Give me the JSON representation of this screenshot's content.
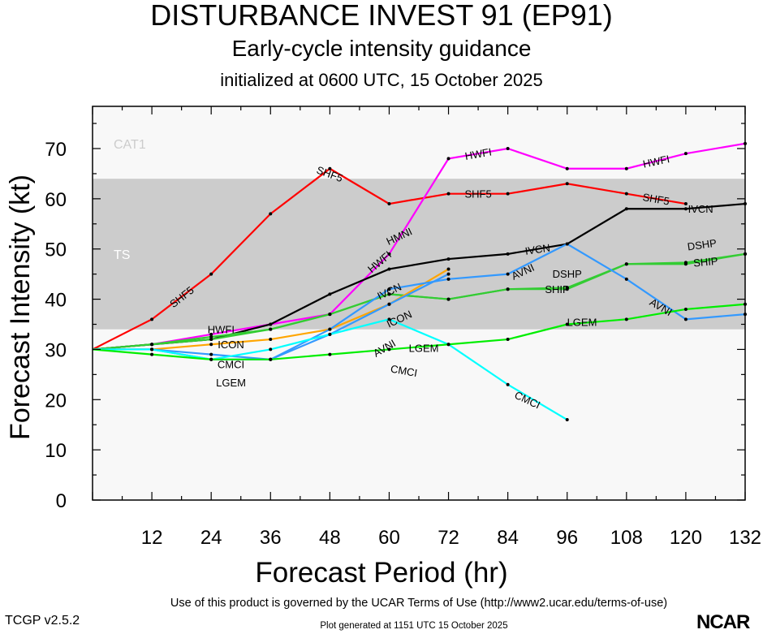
{
  "chart_data": {
    "type": "line",
    "title": "DISTURBANCE INVEST 91 (EP91)",
    "subtitle": "Early-cycle intensity guidance",
    "init_text": "initialized at 0600 UTC, 15 October 2025",
    "xlabel": "Forecast Period (hr)",
    "ylabel": "Forecast Intensity (kt)",
    "xlim": [
      0,
      132
    ],
    "ylim": [
      0,
      78
    ],
    "xticks": [
      12,
      24,
      36,
      48,
      60,
      72,
      84,
      96,
      108,
      120,
      132
    ],
    "yticks": [
      0,
      10,
      20,
      30,
      40,
      50,
      60,
      70
    ],
    "grid": false,
    "bands": [
      {
        "label": "TS",
        "from": 34,
        "to": 64,
        "color": "#cccccc"
      },
      {
        "label": "CAT1",
        "from": 64,
        "to": 83,
        "color": "#f8f8f8"
      }
    ],
    "below_band_color": "#f8f8f8",
    "series": [
      {
        "name": "SHF5",
        "color": "#ff0000",
        "x": [
          0,
          12,
          24,
          36,
          48,
          60,
          72,
          84,
          96,
          108,
          120
        ],
        "y": [
          30,
          36,
          45,
          57,
          66,
          59,
          61,
          61,
          63,
          61,
          59
        ],
        "labels": [
          [
            18,
            40.5,
            -38
          ],
          [
            48,
            65,
            20
          ],
          [
            78,
            61,
            0
          ],
          [
            114,
            60,
            10
          ]
        ]
      },
      {
        "name": "HWFI",
        "color": "#ff00ff",
        "x": [
          0,
          12,
          24,
          36,
          48,
          60,
          72,
          84,
          96,
          108,
          120,
          132
        ],
        "y": [
          30,
          31,
          33,
          35,
          37,
          49,
          68,
          70,
          66,
          66,
          69,
          71
        ],
        "labels": [
          [
            26,
            34,
            0
          ],
          [
            58,
            47.5,
            -40
          ],
          [
            78,
            69,
            -10
          ],
          [
            114,
            67.5,
            -12
          ]
        ]
      },
      {
        "name": "IVCN",
        "color": "#000000",
        "x": [
          0,
          12,
          24,
          36,
          48,
          60,
          72,
          84,
          96,
          108,
          120,
          132
        ],
        "y": [
          30,
          31,
          32,
          35,
          41,
          46,
          48,
          49,
          51,
          58,
          58,
          59
        ],
        "labels": [
          [
            60,
            46,
            -25
          ],
          [
            90,
            50,
            -8
          ],
          [
            123,
            58,
            0
          ]
        ]
      },
      {
        "name": "SHIP",
        "color": "#33cc33",
        "x": [
          0,
          12,
          24,
          36,
          48,
          60,
          72,
          84,
          96,
          108,
          120,
          132
        ],
        "y": [
          30,
          31,
          32,
          34,
          37,
          41,
          40,
          42,
          42,
          47,
          47,
          49
        ],
        "labels": [
          [
            94,
            42,
            0
          ],
          [
            124,
            47.5,
            -5
          ]
        ]
      },
      {
        "name": "DSHP",
        "color": "#33cc33",
        "x": [
          0,
          12,
          24,
          36,
          48,
          60,
          72,
          84,
          96,
          108,
          120,
          132
        ],
        "y": [
          30,
          31,
          32.5,
          34,
          37,
          41,
          40,
          42,
          42.3,
          47,
          47.3,
          49
        ],
        "labels": [
          [
            96,
            42.2,
            0
          ],
          [
            129,
            48,
            -8
          ]
        ]
      },
      {
        "name": "ICON",
        "color": "#ffa500",
        "x": [
          0,
          12,
          24,
          36,
          48,
          60,
          72
        ],
        "y": [
          30,
          30,
          31,
          32,
          34,
          39,
          46
        ],
        "labels": [
          [
            28,
            31,
            0
          ],
          [
            62,
            40.5,
            -25
          ]
        ]
      },
      {
        "name": "AVNI",
        "color": "#3399ff",
        "x": [
          0,
          12,
          24,
          36,
          48,
          60,
          72,
          84,
          96,
          108,
          120,
          132
        ],
        "y": [
          30,
          30,
          29,
          28,
          34,
          42,
          44,
          45,
          51,
          44,
          36,
          37
        ],
        "labels": [
          [
            59,
            40.5,
            -30
          ],
          [
            87,
            47,
            -25
          ],
          [
            115,
            38.5,
            30
          ]
        ]
      },
      {
        "name": "HMNI",
        "color": "#3399ff",
        "x": [
          0,
          12,
          24,
          36,
          48,
          60,
          72
        ],
        "y": [
          30,
          30,
          28,
          28,
          33,
          39,
          45
        ],
        "labels": [
          [
            62,
            39.5,
            -25
          ]
        ]
      },
      {
        "name": "CMCI",
        "color": "#00ffff",
        "x": [
          0,
          12,
          24,
          36,
          48,
          60,
          72,
          84,
          96
        ],
        "y": [
          30,
          30,
          28,
          30,
          33,
          36,
          31,
          23,
          16
        ],
        "labels": [
          [
            28,
            28.5,
            0
          ],
          [
            63,
            36,
            10
          ],
          [
            88,
            20,
            25
          ]
        ]
      },
      {
        "name": "LGEM",
        "color": "#00ee00",
        "x": [
          0,
          12,
          24,
          36,
          48,
          60,
          72,
          84,
          96,
          108,
          120,
          132
        ],
        "y": [
          30,
          29,
          28,
          28,
          29,
          30,
          31,
          32,
          35,
          36,
          38,
          39
        ],
        "labels": [
          [
            28,
            27.8,
            0
          ],
          [
            67,
            30.3,
            0
          ],
          [
            99,
            35.5,
            0
          ]
        ]
      }
    ]
  },
  "footer": {
    "terms": "Use of this product is governed by the UCAR Terms of Use (http://www2.ucar.edu/terms-of-use)",
    "generated": "Plot generated at 1151 UTC   15 October 2025",
    "version": "TCGP v2.5.2",
    "logo_text": "NCAR"
  }
}
